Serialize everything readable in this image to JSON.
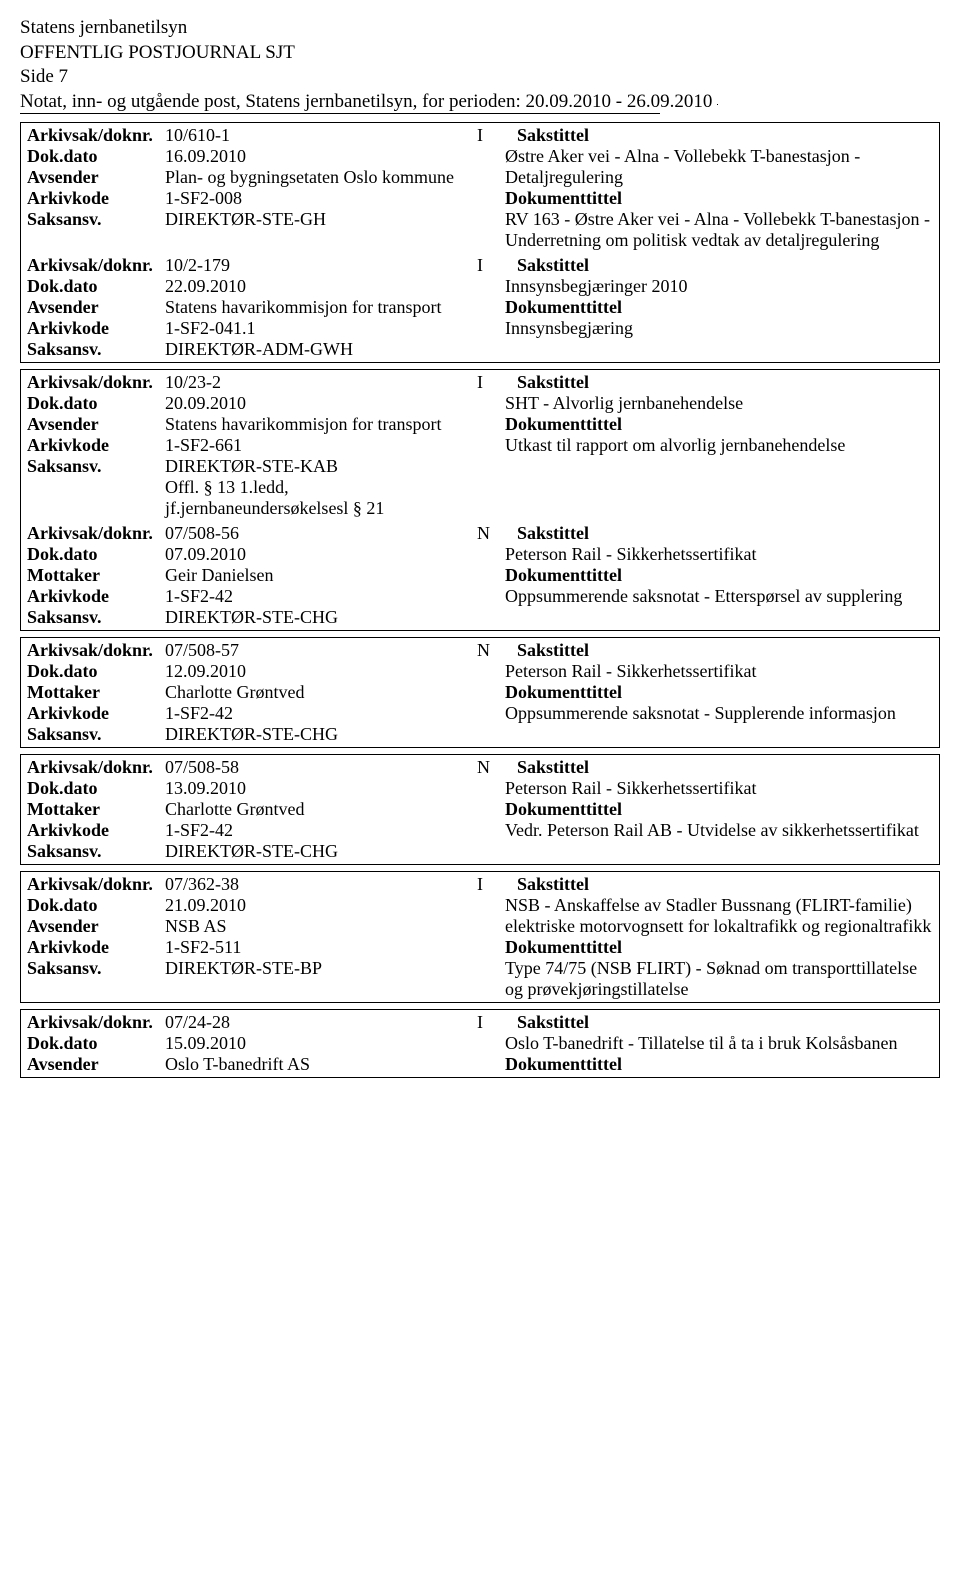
{
  "header": {
    "line1": "Statens jernbanetilsyn",
    "line2": "OFFENTLIG POSTJOURNAL SJT",
    "side": "Side 7",
    "sub": "Notat, inn- og utgående post, Statens jernbanetilsyn, for perioden: 20.09.2010 - 26.09.2010"
  },
  "labels": {
    "arkivsak": "Arkivsak/doknr.",
    "dokdato": "Dok.dato",
    "avsender": "Avsender",
    "mottaker": "Mottaker",
    "arkivkode": "Arkivkode",
    "saksansv": "Saksansv.",
    "sakstittel": "Sakstittel",
    "dokumenttittel": "Dokumenttittel"
  },
  "entries": [
    {
      "arkivsak": "10/610-1",
      "type": "I",
      "dokdato": "16.09.2010",
      "party_label": "Avsender",
      "party": "Plan- og bygningsetaten Oslo kommune",
      "arkivkode": "1-SF2-008",
      "saksansv": "DIREKTØR-STE-GH",
      "extra": "",
      "sakstittel": "Østre Aker vei - Alna - Vollebekk T-banestasjon - Detaljregulering",
      "doktekst": "RV 163 - Østre Aker vei - Alna - Vollebekk T-banestasjon - Underretning om politisk vedtak av detaljregulering"
    },
    {
      "arkivsak": "10/2-179",
      "type": "I",
      "dokdato": "22.09.2010",
      "party_label": "Avsender",
      "party": "Statens havarikommisjon for transport",
      "arkivkode": "1-SF2-041.1",
      "saksansv": "DIREKTØR-ADM-GWH",
      "extra": "",
      "sakstittel": "Innsynsbegjæringer 2010",
      "doktekst": "Innsynsbegjæring"
    },
    {
      "arkivsak": "10/23-2",
      "type": "I",
      "dokdato": "20.09.2010",
      "party_label": "Avsender",
      "party": "Statens havarikommisjon for transport",
      "arkivkode": "1-SF2-661",
      "saksansv": "DIREKTØR-STE-KAB",
      "extra": "Offl. § 13 1.ledd, jf.jernbaneundersøkelsesl § 21",
      "sakstittel": "SHT - Alvorlig jernbanehendelse",
      "doktekst": "Utkast til rapport om alvorlig jernbanehendelse"
    },
    {
      "arkivsak": "07/508-56",
      "type": "N",
      "dokdato": "07.09.2010",
      "party_label": "Mottaker",
      "party": "Geir Danielsen",
      "arkivkode": "1-SF2-42",
      "saksansv": "DIREKTØR-STE-CHG",
      "extra": "",
      "sakstittel": "Peterson Rail - Sikkerhetssertifikat",
      "doktekst": "Oppsummerende saksnotat - Etterspørsel av supplering"
    },
    {
      "arkivsak": "07/508-57",
      "type": "N",
      "dokdato": "12.09.2010",
      "party_label": "Mottaker",
      "party": "Charlotte Grøntved",
      "arkivkode": "1-SF2-42",
      "saksansv": "DIREKTØR-STE-CHG",
      "extra": "",
      "sakstittel": "Peterson Rail - Sikkerhetssertifikat",
      "doktekst": "Oppsummerende saksnotat - Supplerende informasjon"
    },
    {
      "arkivsak": "07/508-58",
      "type": "N",
      "dokdato": "13.09.2010",
      "party_label": "Mottaker",
      "party": "Charlotte Grøntved",
      "arkivkode": "1-SF2-42",
      "saksansv": "DIREKTØR-STE-CHG",
      "extra": "",
      "sakstittel": "Peterson Rail - Sikkerhetssertifikat",
      "doktekst": "Vedr. Peterson Rail AB - Utvidelse av sikkerhetssertifikat"
    },
    {
      "arkivsak": "07/362-38",
      "type": "I",
      "dokdato": "21.09.2010",
      "party_label": "Avsender",
      "party": "NSB AS",
      "arkivkode": "1-SF2-511",
      "saksansv": "DIREKTØR-STE-BP",
      "extra": "",
      "sakstittel": "NSB - Anskaffelse av Stadler Bussnang (FLIRT-familie) elektriske motorvognsett for lokaltrafikk og regionaltrafikk",
      "doktekst": "Type 74/75 (NSB FLIRT) - Søknad om transporttillatelse og prøvekjøringstillatelse"
    },
    {
      "arkivsak": "07/24-28",
      "type": "I",
      "dokdato": "15.09.2010",
      "party_label": "Avsender",
      "party": "Oslo T-banedrift AS",
      "arkivkode": "",
      "saksansv": "",
      "extra": "",
      "sakstittel": "Oslo T-banedrift - Tillatelse til å ta i bruk Kolsåsbanen",
      "doktekst": "",
      "truncated": true
    }
  ]
}
